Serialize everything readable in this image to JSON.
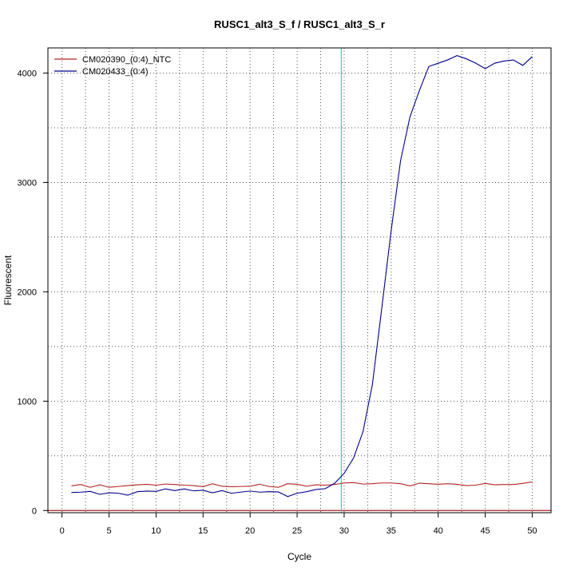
{
  "chart_data": {
    "type": "line",
    "title": "RUSC1_alt3_S_f / RUSC1_alt3_S_r",
    "xlabel": "Cycle",
    "ylabel": "Fluorescent",
    "xlim": [
      -1.5,
      52
    ],
    "ylim": [
      -20,
      4230
    ],
    "x_ticks": [
      0,
      5,
      10,
      15,
      20,
      25,
      30,
      35,
      40,
      45,
      50
    ],
    "y_ticks": [
      0,
      1000,
      2000,
      3000,
      4000
    ],
    "grid": true,
    "legend_position": "top-left",
    "threshold_cycle": 29.7,
    "threshold_color": "#00e5ff",
    "baseline_value": 0,
    "baseline_color": "#b22222",
    "x": [
      1,
      2,
      3,
      4,
      5,
      6,
      7,
      8,
      9,
      10,
      11,
      12,
      13,
      14,
      15,
      16,
      17,
      18,
      19,
      20,
      21,
      22,
      23,
      24,
      25,
      26,
      27,
      28,
      29,
      30,
      31,
      32,
      33,
      34,
      35,
      36,
      37,
      38,
      39,
      40,
      41,
      42,
      43,
      44,
      45,
      46,
      47,
      48,
      49,
      50
    ],
    "series": [
      {
        "name": "CM020390_(0:4)_NTC",
        "color": "#b22222",
        "values": [
          225,
          238,
          212,
          235,
          212,
          220,
          228,
          235,
          240,
          232,
          242,
          238,
          232,
          228,
          218,
          245,
          222,
          218,
          220,
          222,
          240,
          220,
          212,
          245,
          240,
          222,
          235,
          232,
          238,
          252,
          255,
          242,
          245,
          252,
          252,
          245,
          225,
          250,
          245,
          240,
          245,
          240,
          228,
          232,
          248,
          235,
          238,
          238,
          248,
          262
        ]
      },
      {
        "name": "CM020433_(0:4)",
        "color": "#00008b",
        "values": [
          165,
          168,
          175,
          148,
          162,
          158,
          140,
          172,
          178,
          175,
          198,
          182,
          198,
          180,
          185,
          162,
          182,
          158,
          168,
          178,
          168,
          172,
          170,
          128,
          158,
          172,
          192,
          200,
          250,
          340,
          480,
          720,
          1150,
          1850,
          2560,
          3200,
          3600,
          3840,
          4060,
          4090,
          4120,
          4160,
          4130,
          4090,
          4040,
          4090,
          4110,
          4120,
          4070,
          4150
        ]
      }
    ]
  }
}
